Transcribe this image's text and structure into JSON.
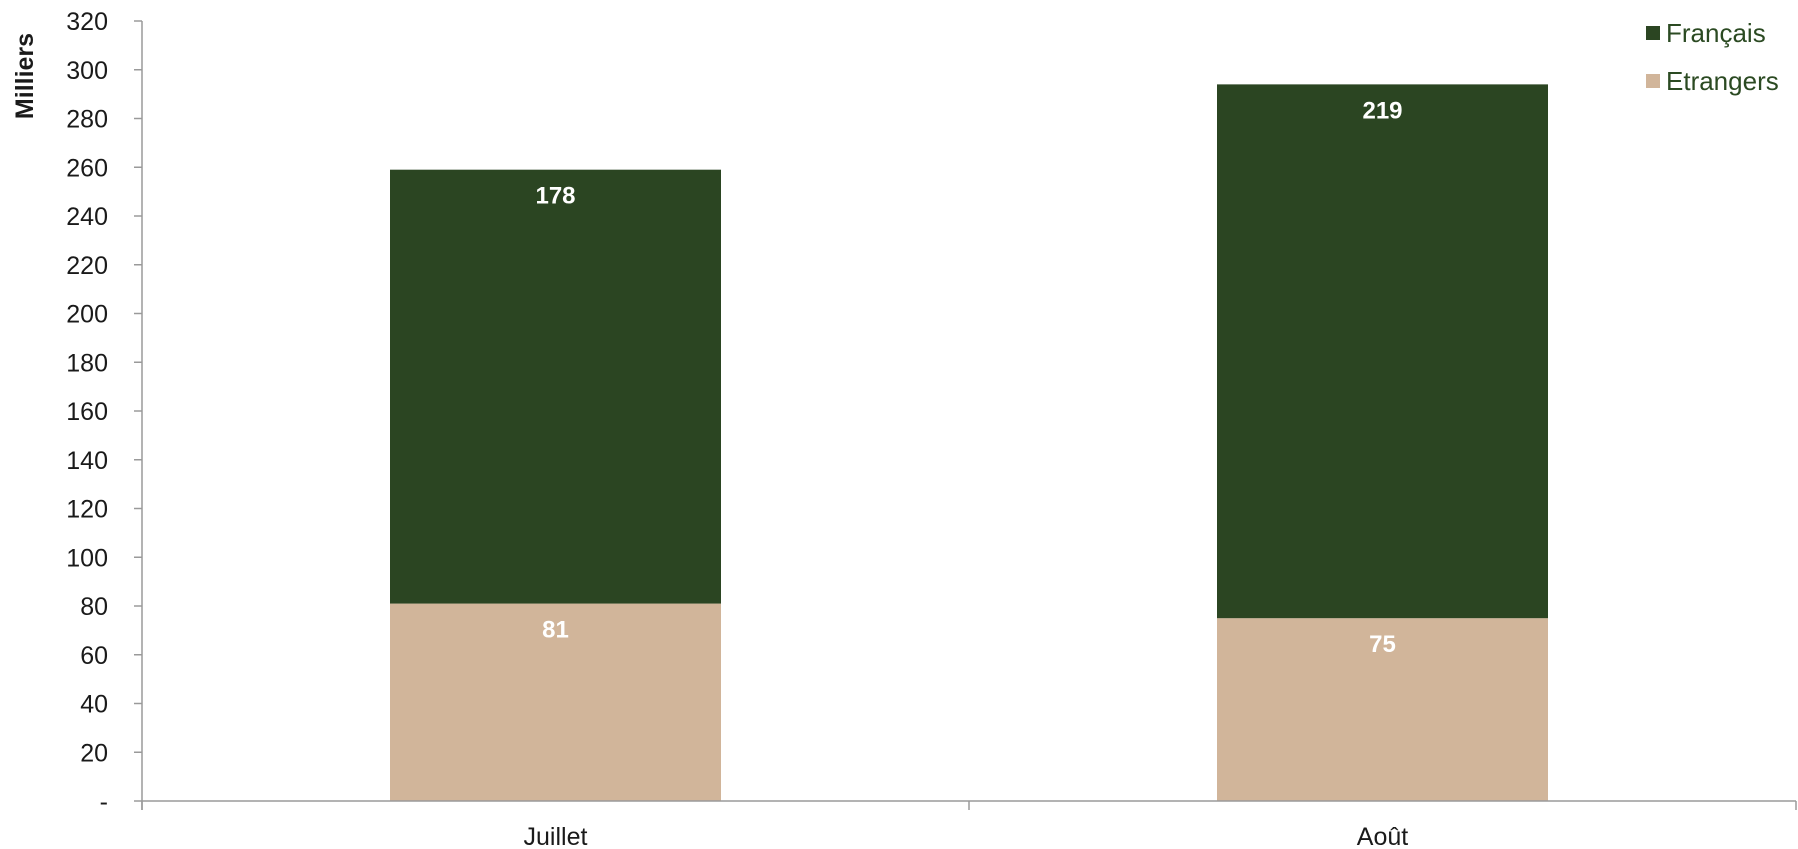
{
  "chart_data": {
    "type": "bar",
    "stacked": true,
    "categories": [
      "Juillet",
      "Août"
    ],
    "series": [
      {
        "name": "Etrangers",
        "values": [
          81,
          75
        ],
        "color": "#d1b59a"
      },
      {
        "name": "Français",
        "values": [
          178,
          219
        ],
        "color": "#2b4522"
      }
    ],
    "ylabel": "Milliers",
    "xlabel": "",
    "ylim": [
      0,
      320
    ],
    "ytick_step": 20,
    "yticks": [
      "-",
      "20",
      "40",
      "60",
      "80",
      "100",
      "120",
      "140",
      "160",
      "180",
      "200",
      "220",
      "240",
      "260",
      "280",
      "300",
      "320"
    ],
    "legend_position": "top-right",
    "legend_order": [
      "Français",
      "Etrangers"
    ],
    "grid": false
  }
}
